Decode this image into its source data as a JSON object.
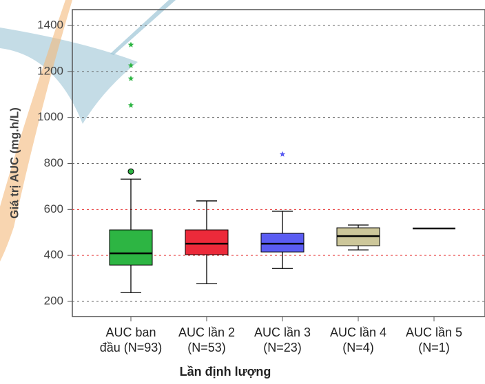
{
  "chart_data": {
    "type": "box",
    "x_label": "Lần định lượng",
    "y_label": "Giá trị AUC (mg.h/L)",
    "categories": [
      [
        "AUC ban",
        "đầu (N=93)"
      ],
      [
        "AUC lần 2",
        "(N=53)"
      ],
      [
        "AUC lần 3",
        "(N=23)"
      ],
      [
        "AUC lần 4",
        "(N=4)"
      ],
      [
        "AUC lần 5",
        "(N=1)"
      ]
    ],
    "boxes": [
      {
        "color": "#2db543",
        "min": 238,
        "q1": 358,
        "median": 409,
        "q3": 511,
        "max": 732,
        "outliers": [
          765
        ],
        "extremes": [
          1316,
          1226,
          1169,
          1053
        ]
      },
      {
        "color": "#ec2a3a",
        "min": 277,
        "q1": 403,
        "median": 451,
        "q3": 511,
        "max": 637,
        "outliers": [],
        "extremes": []
      },
      {
        "color": "#5a5cf2",
        "min": 343,
        "q1": 415,
        "median": 451,
        "q3": 496,
        "max": 592,
        "outliers": [],
        "extremes": [
          840
        ]
      },
      {
        "color": "#cdc79a",
        "min": 424,
        "q1": 442,
        "median": 484,
        "q3": 520,
        "max": 532,
        "outliers": [],
        "extremes": []
      },
      {
        "color": "#cccccc",
        "min": 517,
        "q1": 517,
        "median": 517,
        "q3": 517,
        "max": 517,
        "outliers": [],
        "extremes": []
      }
    ],
    "ylim": [
      134,
      1469
    ],
    "yticks": [
      200,
      400,
      600,
      800,
      1000,
      1200,
      1400
    ],
    "grid": true,
    "reference_lines": [
      400,
      600
    ],
    "reference_color": "#e83a3a"
  }
}
